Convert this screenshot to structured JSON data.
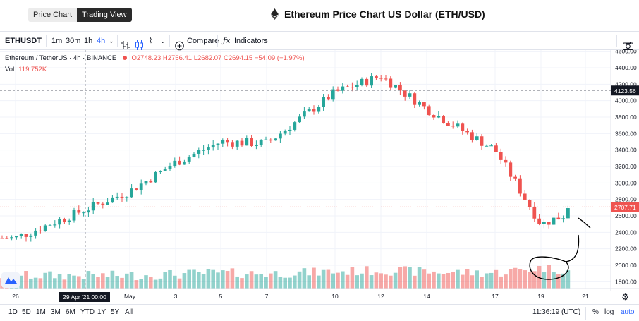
{
  "header": {
    "tabs": [
      {
        "label": "Price Chart",
        "active": false
      },
      {
        "label": "Trading View",
        "active": true
      }
    ],
    "title": "Ethereum Price Chart US Dollar (ETH/USD)",
    "logo_icon": "ethereum-diamond-icon"
  },
  "toolbar": {
    "symbol": "ETHUSDT",
    "intervals": [
      "1m",
      "30m",
      "1h",
      "4h"
    ],
    "active_interval": "4h",
    "compare_label": "Compare",
    "indicators_label": "Indicators",
    "icons": [
      "chevron-down-icon",
      "bar-style-icon",
      "candle-style-icon",
      "chevron-down-icon",
      "plus-circle-icon",
      "fx-icon",
      "camera-icon"
    ]
  },
  "legend": {
    "name": "Ethereum / TetherUS · 4h · BINANCE",
    "open": "O2748.23",
    "high": "H2756.41",
    "low": "L2682.07",
    "close": "C2694.15",
    "change": "−54.09 (−1.97%)",
    "vol_label": "Vol",
    "vol_value": "119.752K"
  },
  "price_axis": {
    "ticks": [
      "4600.00",
      "4400.00",
      "4200.00",
      "4000.00",
      "3800.00",
      "3600.00",
      "3400.00",
      "3200.00",
      "3000.00",
      "2800.00",
      "2600.00",
      "2400.00",
      "2200.00",
      "2000.00",
      "1800.00"
    ],
    "crosshair_label": "4123.56",
    "last_price_label": "2707.71"
  },
  "time_axis": {
    "ticks": [
      "26",
      "May",
      "3",
      "5",
      "7",
      "10",
      "12",
      "14",
      "17",
      "19",
      "21"
    ],
    "crosshair_label": "29 Apr '21   00:00"
  },
  "bottom": {
    "ranges": [
      "1D",
      "5D",
      "1M",
      "3M",
      "6M",
      "YTD",
      "1Y",
      "5Y",
      "All"
    ],
    "clock": "11:36:19 (UTC)",
    "percent": "%",
    "log": "log",
    "auto": "auto"
  },
  "colors": {
    "up": "#26a69a",
    "down": "#ef5350",
    "accent": "#2962ff"
  },
  "chart_data": {
    "type": "candlestick",
    "title": "Ethereum / TetherUS · 4h · BINANCE",
    "ylim": [
      1700,
      4700
    ],
    "x_ticks": [
      "26",
      "May",
      "3",
      "5",
      "7",
      "10",
      "12",
      "14",
      "17",
      "19",
      "21"
    ],
    "anchors": [
      {
        "tick": "26",
        "close": 2330,
        "vol": 0.3
      },
      {
        "tick": "May",
        "close": 2900,
        "vol": 0.3
      },
      {
        "tick": "3",
        "close": 3250,
        "vol": 0.4
      },
      {
        "tick": "5",
        "close": 3500,
        "vol": 0.5
      },
      {
        "tick": "7",
        "close": 3480,
        "vol": 0.45
      },
      {
        "tick": "10",
        "close": 4100,
        "vol": 0.6
      },
      {
        "tick": "12",
        "close": 4300,
        "vol": 0.7
      },
      {
        "tick": "14",
        "close": 3900,
        "vol": 0.6
      },
      {
        "tick": "17",
        "close": 3400,
        "vol": 0.5
      },
      {
        "tick": "19",
        "close": 2500,
        "vol": 0.9
      },
      {
        "tick": "21",
        "close": 2707,
        "vol": 0.6
      }
    ],
    "last": {
      "open": 2748.23,
      "high": 2756.41,
      "low": 2682.07,
      "close": 2694.15
    },
    "crosshair_price": 4123.56,
    "last_price": 2707.71
  }
}
